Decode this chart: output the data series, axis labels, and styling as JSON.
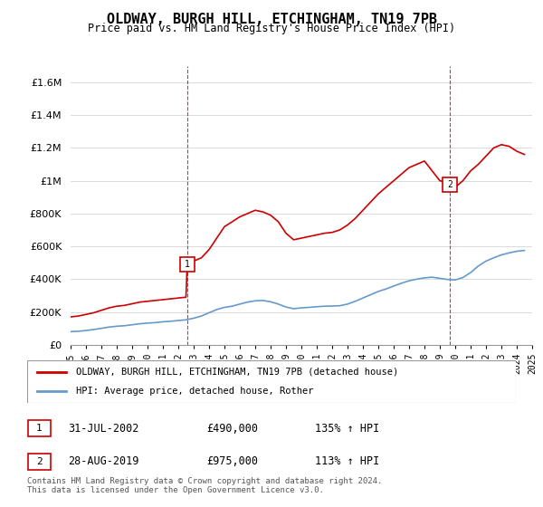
{
  "title": "OLDWAY, BURGH HILL, ETCHINGHAM, TN19 7PB",
  "subtitle": "Price paid vs. HM Land Registry's House Price Index (HPI)",
  "legend_line1": "OLDWAY, BURGH HILL, ETCHINGHAM, TN19 7PB (detached house)",
  "legend_line2": "HPI: Average price, detached house, Rother",
  "sale1_label": "1",
  "sale1_date": "31-JUL-2002",
  "sale1_price": "£490,000",
  "sale1_hpi": "135% ↑ HPI",
  "sale2_label": "2",
  "sale2_date": "28-AUG-2019",
  "sale2_price": "£975,000",
  "sale2_hpi": "113% ↑ HPI",
  "footer": "Contains HM Land Registry data © Crown copyright and database right 2024.\nThis data is licensed under the Open Government Licence v3.0.",
  "ylim": [
    0,
    1700000
  ],
  "yticks": [
    0,
    200000,
    400000,
    600000,
    800000,
    1000000,
    1200000,
    1400000,
    1600000
  ],
  "ytick_labels": [
    "£0",
    "£200K",
    "£400K",
    "£600K",
    "£800K",
    "£1M",
    "£1.2M",
    "£1.4M",
    "£1.6M"
  ],
  "red_color": "#cc0000",
  "blue_color": "#6699cc",
  "dashed_color": "#cc0000",
  "background_color": "#ffffff",
  "grid_color": "#cccccc",
  "sale1_x": 2002.58,
  "sale1_y": 490000,
  "sale2_x": 2019.66,
  "sale2_y": 975000,
  "red_x": [
    1995.0,
    1995.5,
    1996.0,
    1996.5,
    1997.0,
    1997.5,
    1998.0,
    1998.5,
    1999.0,
    1999.5,
    2000.0,
    2000.5,
    2001.0,
    2001.5,
    2002.0,
    2002.5,
    2002.58,
    2003.0,
    2003.5,
    2004.0,
    2004.5,
    2005.0,
    2005.5,
    2006.0,
    2006.5,
    2007.0,
    2007.5,
    2008.0,
    2008.5,
    2009.0,
    2009.5,
    2010.0,
    2010.5,
    2011.0,
    2011.5,
    2012.0,
    2012.5,
    2013.0,
    2013.5,
    2014.0,
    2014.5,
    2015.0,
    2015.5,
    2016.0,
    2016.5,
    2017.0,
    2017.5,
    2018.0,
    2018.5,
    2019.0,
    2019.5,
    2019.66,
    2020.0,
    2020.5,
    2021.0,
    2021.5,
    2022.0,
    2022.5,
    2023.0,
    2023.5,
    2024.0,
    2024.5
  ],
  "red_y": [
    170000,
    175000,
    185000,
    195000,
    210000,
    225000,
    235000,
    240000,
    250000,
    260000,
    265000,
    270000,
    275000,
    280000,
    285000,
    290000,
    490000,
    510000,
    530000,
    580000,
    650000,
    720000,
    750000,
    780000,
    800000,
    820000,
    810000,
    790000,
    750000,
    680000,
    640000,
    650000,
    660000,
    670000,
    680000,
    685000,
    700000,
    730000,
    770000,
    820000,
    870000,
    920000,
    960000,
    1000000,
    1040000,
    1080000,
    1100000,
    1120000,
    1060000,
    1000000,
    990000,
    975000,
    960000,
    1000000,
    1060000,
    1100000,
    1150000,
    1200000,
    1220000,
    1210000,
    1180000,
    1160000
  ],
  "blue_x": [
    1995.0,
    1995.5,
    1996.0,
    1996.5,
    1997.0,
    1997.5,
    1998.0,
    1998.5,
    1999.0,
    1999.5,
    2000.0,
    2000.5,
    2001.0,
    2001.5,
    2002.0,
    2002.5,
    2003.0,
    2003.5,
    2004.0,
    2004.5,
    2005.0,
    2005.5,
    2006.0,
    2006.5,
    2007.0,
    2007.5,
    2008.0,
    2008.5,
    2009.0,
    2009.5,
    2010.0,
    2010.5,
    2011.0,
    2011.5,
    2012.0,
    2012.5,
    2013.0,
    2013.5,
    2014.0,
    2014.5,
    2015.0,
    2015.5,
    2016.0,
    2016.5,
    2017.0,
    2017.5,
    2018.0,
    2018.5,
    2019.0,
    2019.5,
    2020.0,
    2020.5,
    2021.0,
    2021.5,
    2022.0,
    2022.5,
    2023.0,
    2023.5,
    2024.0,
    2024.5
  ],
  "blue_y": [
    80000,
    82000,
    87000,
    93000,
    100000,
    108000,
    113000,
    116000,
    122000,
    128000,
    132000,
    135000,
    140000,
    143000,
    148000,
    152000,
    162000,
    175000,
    195000,
    215000,
    228000,
    235000,
    248000,
    260000,
    268000,
    270000,
    262000,
    248000,
    230000,
    220000,
    225000,
    228000,
    232000,
    235000,
    236000,
    238000,
    248000,
    265000,
    285000,
    305000,
    325000,
    340000,
    358000,
    375000,
    390000,
    400000,
    408000,
    412000,
    405000,
    398000,
    395000,
    410000,
    440000,
    480000,
    510000,
    530000,
    548000,
    560000,
    570000,
    575000
  ],
  "xmin": 1995,
  "xmax": 2025
}
